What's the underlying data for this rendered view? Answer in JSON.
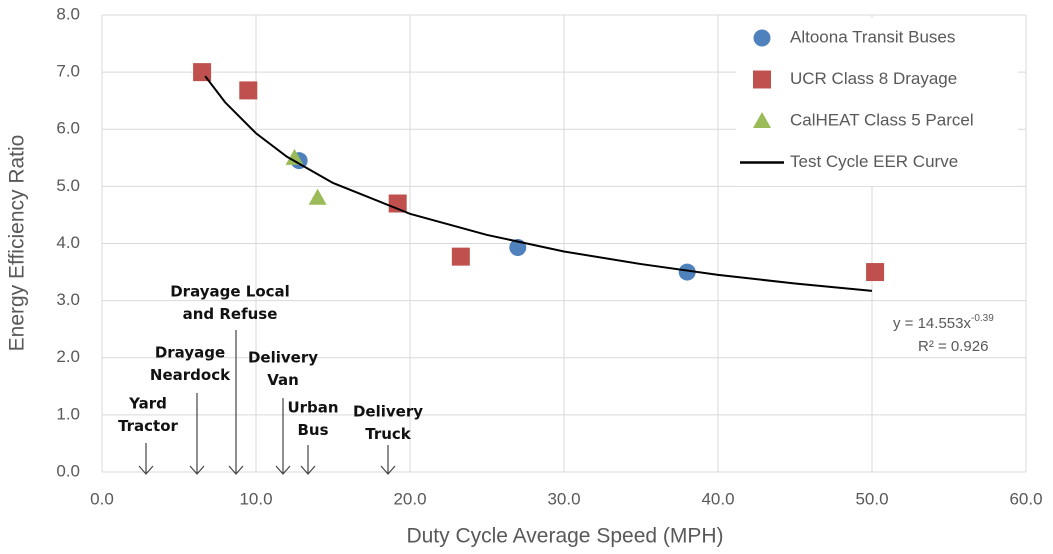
{
  "chart_data": {
    "type": "scatter",
    "x_label": "Duty Cycle Average Speed (MPH)",
    "y_label": "Energy Efficiency Ratio",
    "xlim": [
      0,
      60
    ],
    "ylim": [
      0,
      8
    ],
    "xticks": [
      {
        "value": 0,
        "label": "0.0"
      },
      {
        "value": 10,
        "label": "10.0"
      },
      {
        "value": 20,
        "label": "20.0"
      },
      {
        "value": 30,
        "label": "30.0"
      },
      {
        "value": 40,
        "label": "40.0"
      },
      {
        "value": 50,
        "label": "50.0"
      },
      {
        "value": 60,
        "label": "60.0"
      }
    ],
    "yticks": [
      {
        "value": 0,
        "label": "0.0"
      },
      {
        "value": 1,
        "label": "1.0"
      },
      {
        "value": 2,
        "label": "2.0"
      },
      {
        "value": 3,
        "label": "3.0"
      },
      {
        "value": 4,
        "label": "4.0"
      },
      {
        "value": 5,
        "label": "5.0"
      },
      {
        "value": 6,
        "label": "6.0"
      },
      {
        "value": 7,
        "label": "7.0"
      },
      {
        "value": 8,
        "label": "8.0"
      }
    ],
    "grid": true,
    "legend": "upper right",
    "series": [
      {
        "name": "Altoona Transit Buses",
        "color": "#4f81bd",
        "marker": "circle",
        "x": [
          12.8,
          27,
          38
        ],
        "values": [
          5.45,
          3.93,
          3.5
        ]
      },
      {
        "name": "UCR Class 8 Drayage",
        "color": "#c0504d",
        "marker": "square",
        "x": [
          6.5,
          9.5,
          19.2,
          23.3,
          50.2
        ],
        "values": [
          7.0,
          6.68,
          4.7,
          3.77,
          3.5
        ]
      },
      {
        "name": "CalHEAT Class 5 Parcel",
        "color": "#9bbb59",
        "marker": "triangle",
        "x": [
          12.5,
          14
        ],
        "values": [
          5.5,
          4.8
        ]
      },
      {
        "name": "Test Cycle EER Curve",
        "color": "#000000",
        "marker": "line",
        "x": [
          6.7,
          8,
          10,
          12,
          15,
          20,
          25,
          30,
          35,
          40,
          45,
          50
        ],
        "values": [
          6.93,
          6.47,
          5.93,
          5.52,
          5.06,
          4.52,
          4.15,
          3.86,
          3.64,
          3.45,
          3.3,
          3.17
        ]
      }
    ],
    "equation": {
      "text": "y = 14.553x",
      "superscript": "-0.39",
      "r2": "R² = 0.926"
    },
    "annotations": [
      {
        "lines": [
          "Yard",
          "Tractor"
        ]
      },
      {
        "lines": [
          "Drayage",
          "Neardock"
        ]
      },
      {
        "lines": [
          "Drayage Local",
          "and Refuse"
        ]
      },
      {
        "lines": [
          "Delivery",
          "Van"
        ]
      },
      {
        "lines": [
          "Urban",
          "Bus"
        ]
      },
      {
        "lines": [
          "Delivery",
          "Truck"
        ]
      }
    ]
  }
}
